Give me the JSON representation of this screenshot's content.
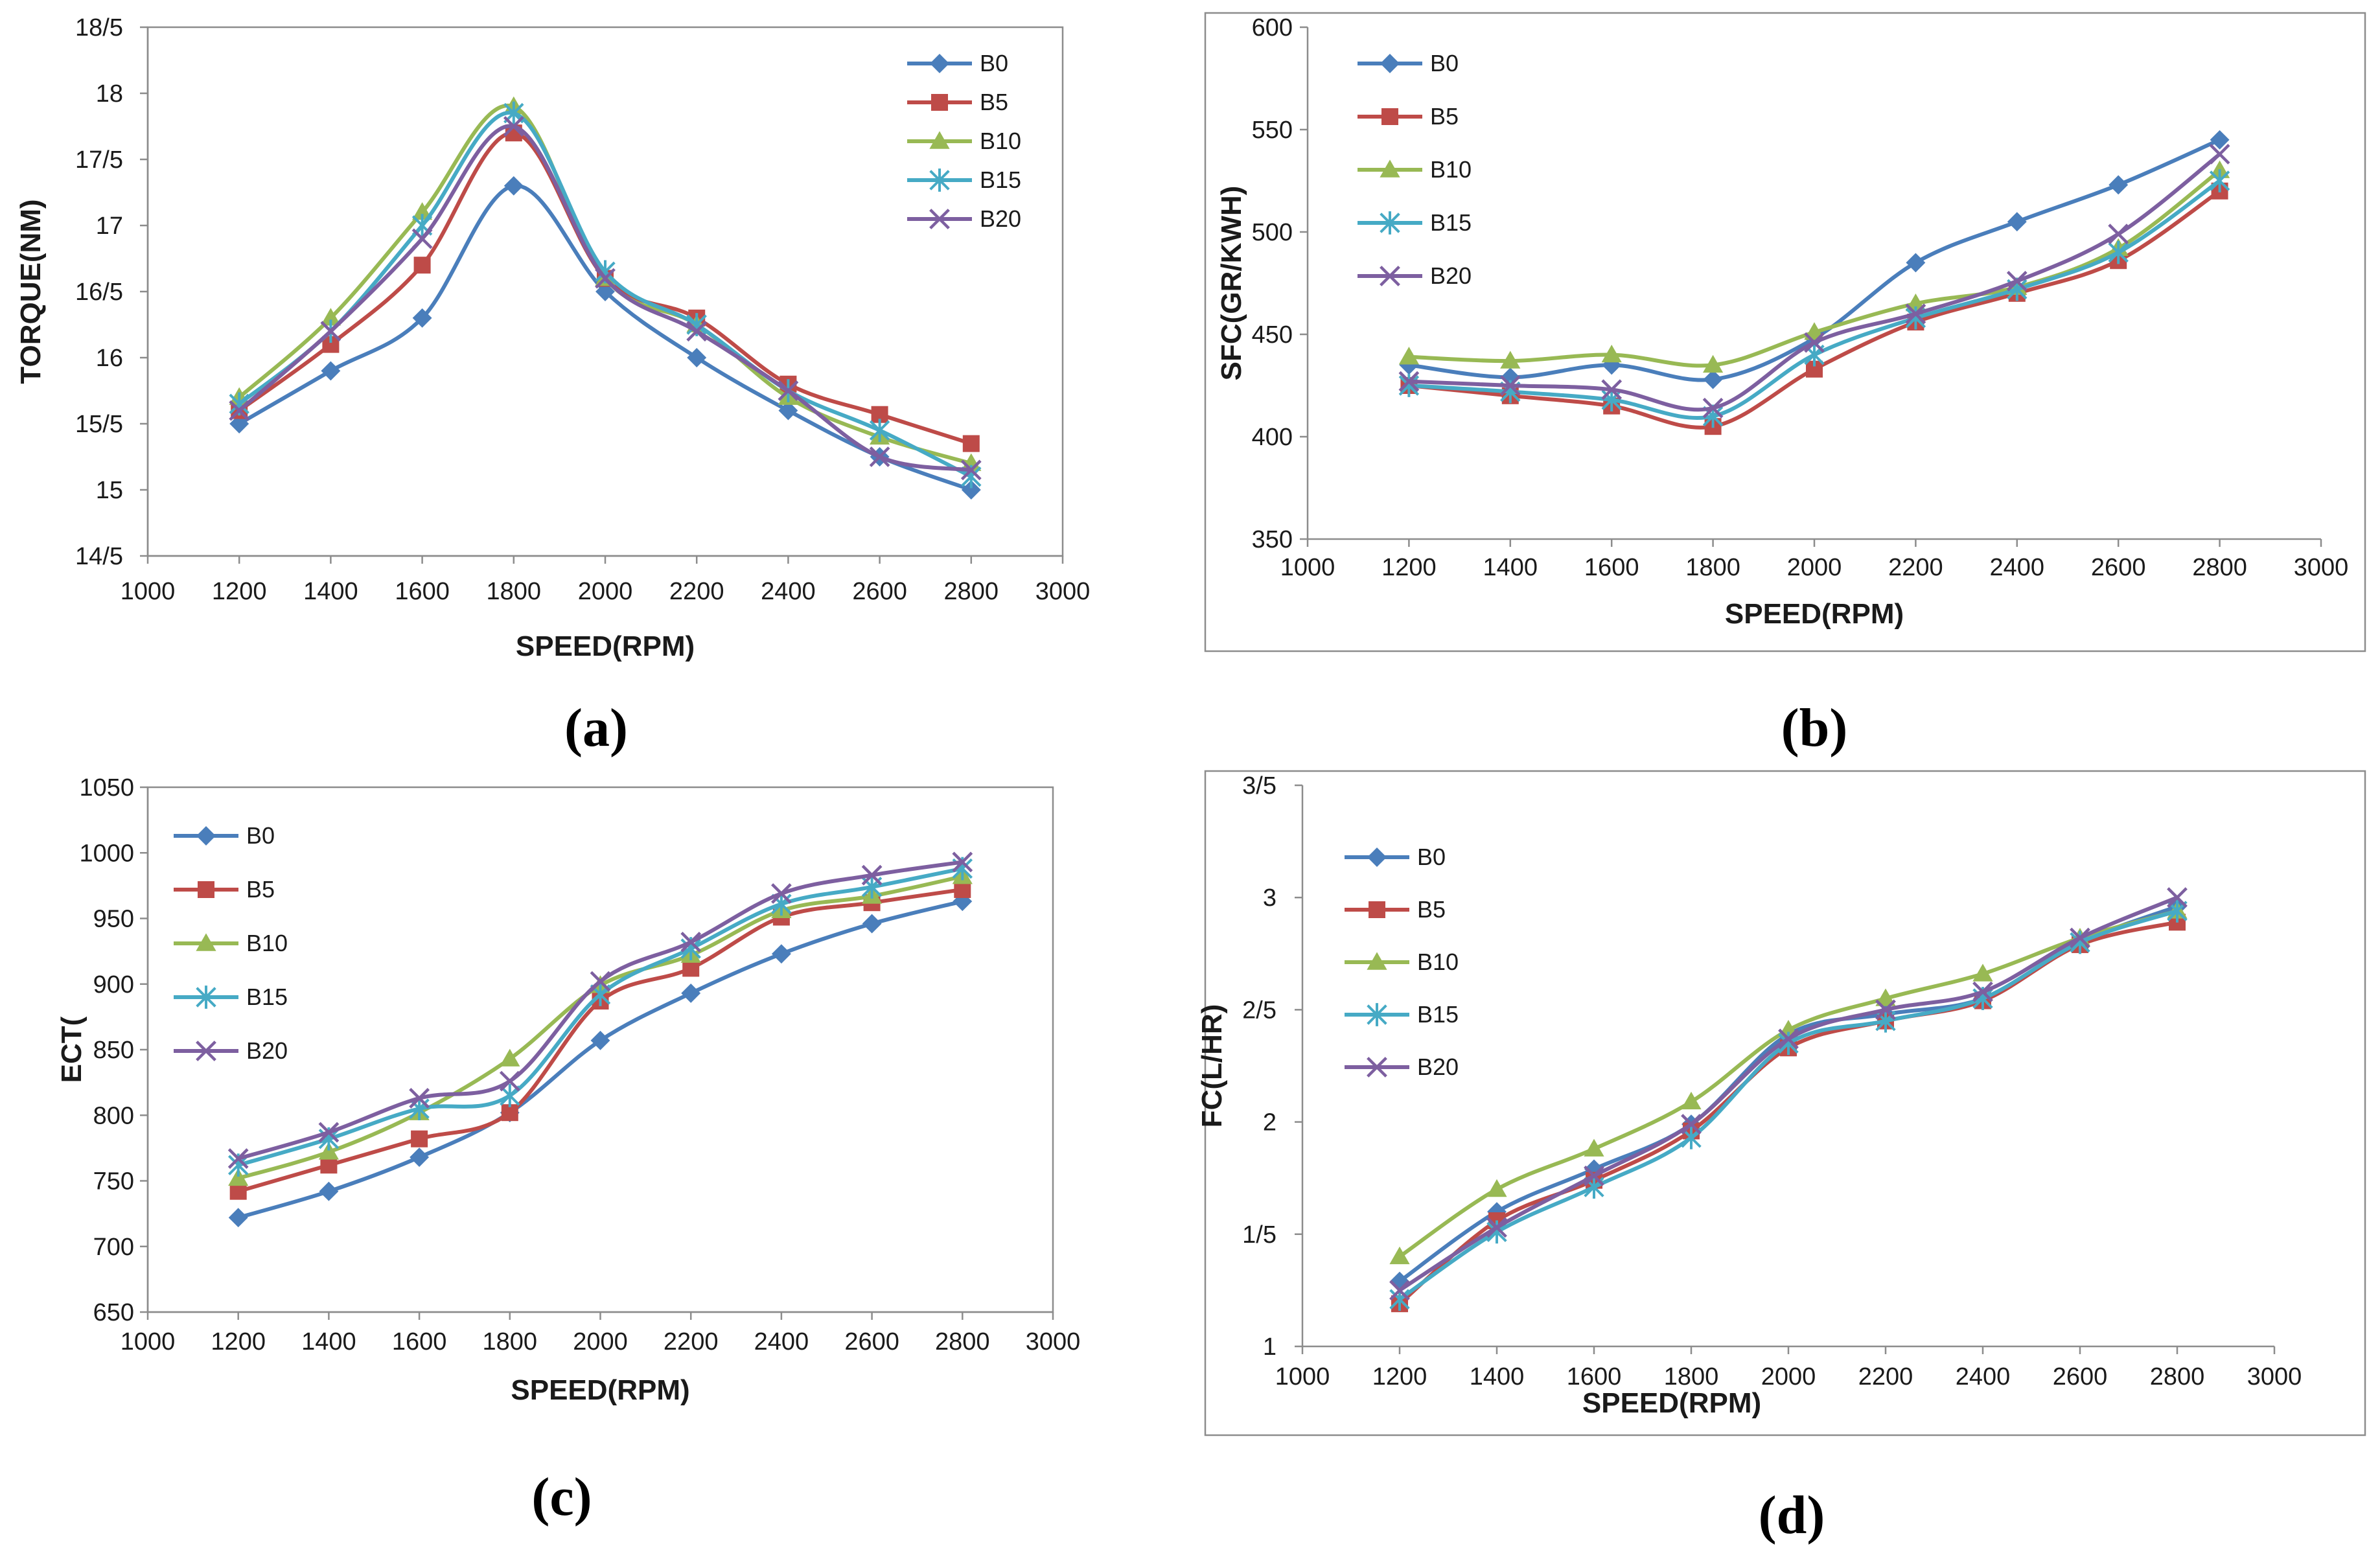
{
  "colors": {
    "B0": "#4a7ebb",
    "B5": "#be4b48",
    "B10": "#98b954",
    "B15": "#46aac5",
    "B20": "#7d5fa0",
    "frame": "#8c8c8c",
    "gridline": "#8c8c8c"
  },
  "chart_data": [
    {
      "id": "a",
      "caption": "(a)",
      "type": "line",
      "xlabel": "SPEED(RPM)",
      "ylabel": "TORQUE(NM)",
      "xlim": [
        1000,
        3000
      ],
      "x_ticks": [
        1000,
        1200,
        1400,
        1600,
        1800,
        2000,
        2200,
        2400,
        2600,
        2800,
        3000
      ],
      "x_tick_labels": [
        "1000",
        "1200",
        "1400",
        "1600",
        "1800",
        "2000",
        "2200",
        "2400",
        "2600",
        "2800",
        "3000"
      ],
      "ylim": [
        14.5,
        18.5
      ],
      "y_ticks": [
        14.5,
        15,
        15.5,
        16,
        16.5,
        17,
        17.5,
        18,
        18.5
      ],
      "y_tick_labels": [
        "14/5",
        "15",
        "15/5",
        "16",
        "16/5",
        "17",
        "17/5",
        "18",
        "18/5"
      ],
      "legend_position": "top-right",
      "x": [
        1200,
        1400,
        1600,
        1800,
        2000,
        2200,
        2400,
        2600,
        2800
      ],
      "series": [
        {
          "name": "B0",
          "marker": "diamond",
          "values": [
            15.5,
            15.9,
            16.3,
            17.3,
            16.5,
            16.0,
            15.6,
            15.25,
            15.0
          ]
        },
        {
          "name": "B5",
          "marker": "square",
          "values": [
            15.6,
            16.1,
            16.7,
            17.7,
            16.6,
            16.3,
            15.8,
            15.57,
            15.35
          ]
        },
        {
          "name": "B10",
          "marker": "triangle",
          "values": [
            15.7,
            16.3,
            17.1,
            17.9,
            16.6,
            16.25,
            15.7,
            15.4,
            15.2
          ]
        },
        {
          "name": "B15",
          "marker": "asterisk",
          "values": [
            15.65,
            16.2,
            17.0,
            17.85,
            16.65,
            16.25,
            15.75,
            15.45,
            15.1
          ]
        },
        {
          "name": "B20",
          "marker": "x",
          "values": [
            15.6,
            16.2,
            16.9,
            17.75,
            16.6,
            16.2,
            15.75,
            15.25,
            15.15
          ]
        }
      ]
    },
    {
      "id": "b",
      "caption": "(b)",
      "type": "line",
      "xlabel": "SPEED(RPM)",
      "ylabel": "SFC(GR/KWH)",
      "xlim": [
        1000,
        3000
      ],
      "x_ticks": [
        1000,
        1200,
        1400,
        1600,
        1800,
        2000,
        2200,
        2400,
        2600,
        2800,
        3000
      ],
      "x_tick_labels": [
        "1000",
        "1200",
        "1400",
        "1600",
        "1800",
        "2000",
        "2200",
        "2400",
        "2600",
        "2800",
        "3000"
      ],
      "ylim": [
        350,
        600
      ],
      "y_ticks": [
        350,
        400,
        450,
        500,
        550,
        600
      ],
      "y_tick_labels": [
        "350",
        "400",
        "450",
        "500",
        "550",
        "600"
      ],
      "legend_position": "top-left",
      "x": [
        1200,
        1400,
        1600,
        1800,
        2000,
        2200,
        2400,
        2600,
        2800
      ],
      "series": [
        {
          "name": "B0",
          "marker": "diamond",
          "values": [
            435,
            429,
            435,
            428,
            448,
            485,
            505,
            523,
            545
          ]
        },
        {
          "name": "B5",
          "marker": "square",
          "values": [
            425,
            420,
            415,
            405,
            433,
            456,
            470,
            486,
            520
          ]
        },
        {
          "name": "B10",
          "marker": "triangle",
          "values": [
            439,
            437,
            440,
            435,
            451,
            465,
            473,
            492,
            530
          ]
        },
        {
          "name": "B15",
          "marker": "asterisk",
          "values": [
            425,
            422,
            418,
            410,
            440,
            458,
            472,
            490,
            525
          ]
        },
        {
          "name": "B20",
          "marker": "x",
          "values": [
            427,
            425,
            423,
            414,
            446,
            460,
            476,
            499,
            538
          ]
        }
      ]
    },
    {
      "id": "c",
      "caption": "(c)",
      "type": "line",
      "xlabel": "SPEED(RPM)",
      "ylabel": "ECT(",
      "xlim": [
        1000,
        3000
      ],
      "x_ticks": [
        1000,
        1200,
        1400,
        1600,
        1800,
        2000,
        2200,
        2400,
        2600,
        2800,
        3000
      ],
      "x_tick_labels": [
        "1000",
        "1200",
        "1400",
        "1600",
        "1800",
        "2000",
        "2200",
        "2400",
        "2600",
        "2800",
        "3000"
      ],
      "ylim": [
        650,
        1050
      ],
      "y_ticks": [
        650,
        700,
        750,
        800,
        850,
        900,
        950,
        1000,
        1050
      ],
      "y_tick_labels": [
        "650",
        "700",
        "750",
        "800",
        "850",
        "900",
        "950",
        "1000",
        "1050"
      ],
      "legend_position": "top-left",
      "x": [
        1200,
        1400,
        1600,
        1800,
        2000,
        2200,
        2400,
        2600,
        2800
      ],
      "series": [
        {
          "name": "B0",
          "marker": "diamond",
          "values": [
            722,
            742,
            768,
            802,
            857,
            893,
            923,
            946,
            963
          ]
        },
        {
          "name": "B5",
          "marker": "square",
          "values": [
            742,
            762,
            782,
            802,
            887,
            912,
            951,
            962,
            972
          ]
        },
        {
          "name": "B10",
          "marker": "triangle",
          "values": [
            752,
            772,
            802,
            843,
            899,
            922,
            956,
            967,
            982
          ]
        },
        {
          "name": "B15",
          "marker": "asterisk",
          "values": [
            762,
            782,
            805,
            815,
            892,
            927,
            961,
            974,
            988
          ]
        },
        {
          "name": "B20",
          "marker": "x",
          "values": [
            767,
            787,
            813,
            826,
            902,
            932,
            969,
            983,
            993
          ]
        }
      ]
    },
    {
      "id": "d",
      "caption": "(d)",
      "type": "line",
      "xlabel": "SPEED(RPM)",
      "ylabel": "FC(L/HR)",
      "xlim": [
        1000,
        3000
      ],
      "x_ticks": [
        1000,
        1200,
        1400,
        1600,
        1800,
        2000,
        2200,
        2400,
        2600,
        2800,
        3000
      ],
      "x_tick_labels": [
        "1000",
        "1200",
        "1400",
        "1600",
        "1800",
        "2000",
        "2200",
        "2400",
        "2600",
        "2800",
        "3000"
      ],
      "ylim": [
        1,
        3.5
      ],
      "y_ticks": [
        1,
        1.5,
        2,
        2.5,
        3,
        3.5
      ],
      "y_tick_labels": [
        "1",
        "1/5",
        "2",
        "2/5",
        "3",
        "3/5"
      ],
      "legend_position": "top-left",
      "x": [
        1200,
        1400,
        1600,
        1800,
        2000,
        2200,
        2400,
        2600,
        2800
      ],
      "series": [
        {
          "name": "B0",
          "marker": "diamond",
          "values": [
            1.29,
            1.6,
            1.79,
            1.99,
            2.39,
            2.48,
            2.55,
            2.8,
            2.96
          ]
        },
        {
          "name": "B5",
          "marker": "square",
          "values": [
            1.19,
            1.56,
            1.74,
            1.96,
            2.33,
            2.45,
            2.54,
            2.79,
            2.89
          ]
        },
        {
          "name": "B10",
          "marker": "triangle",
          "values": [
            1.4,
            1.7,
            1.88,
            2.09,
            2.41,
            2.55,
            2.66,
            2.82,
            2.94
          ]
        },
        {
          "name": "B15",
          "marker": "asterisk",
          "values": [
            1.21,
            1.51,
            1.71,
            1.93,
            2.35,
            2.45,
            2.55,
            2.8,
            2.94
          ]
        },
        {
          "name": "B20",
          "marker": "x",
          "values": [
            1.25,
            1.53,
            1.76,
            1.99,
            2.37,
            2.5,
            2.58,
            2.82,
            3.0
          ]
        }
      ]
    }
  ]
}
